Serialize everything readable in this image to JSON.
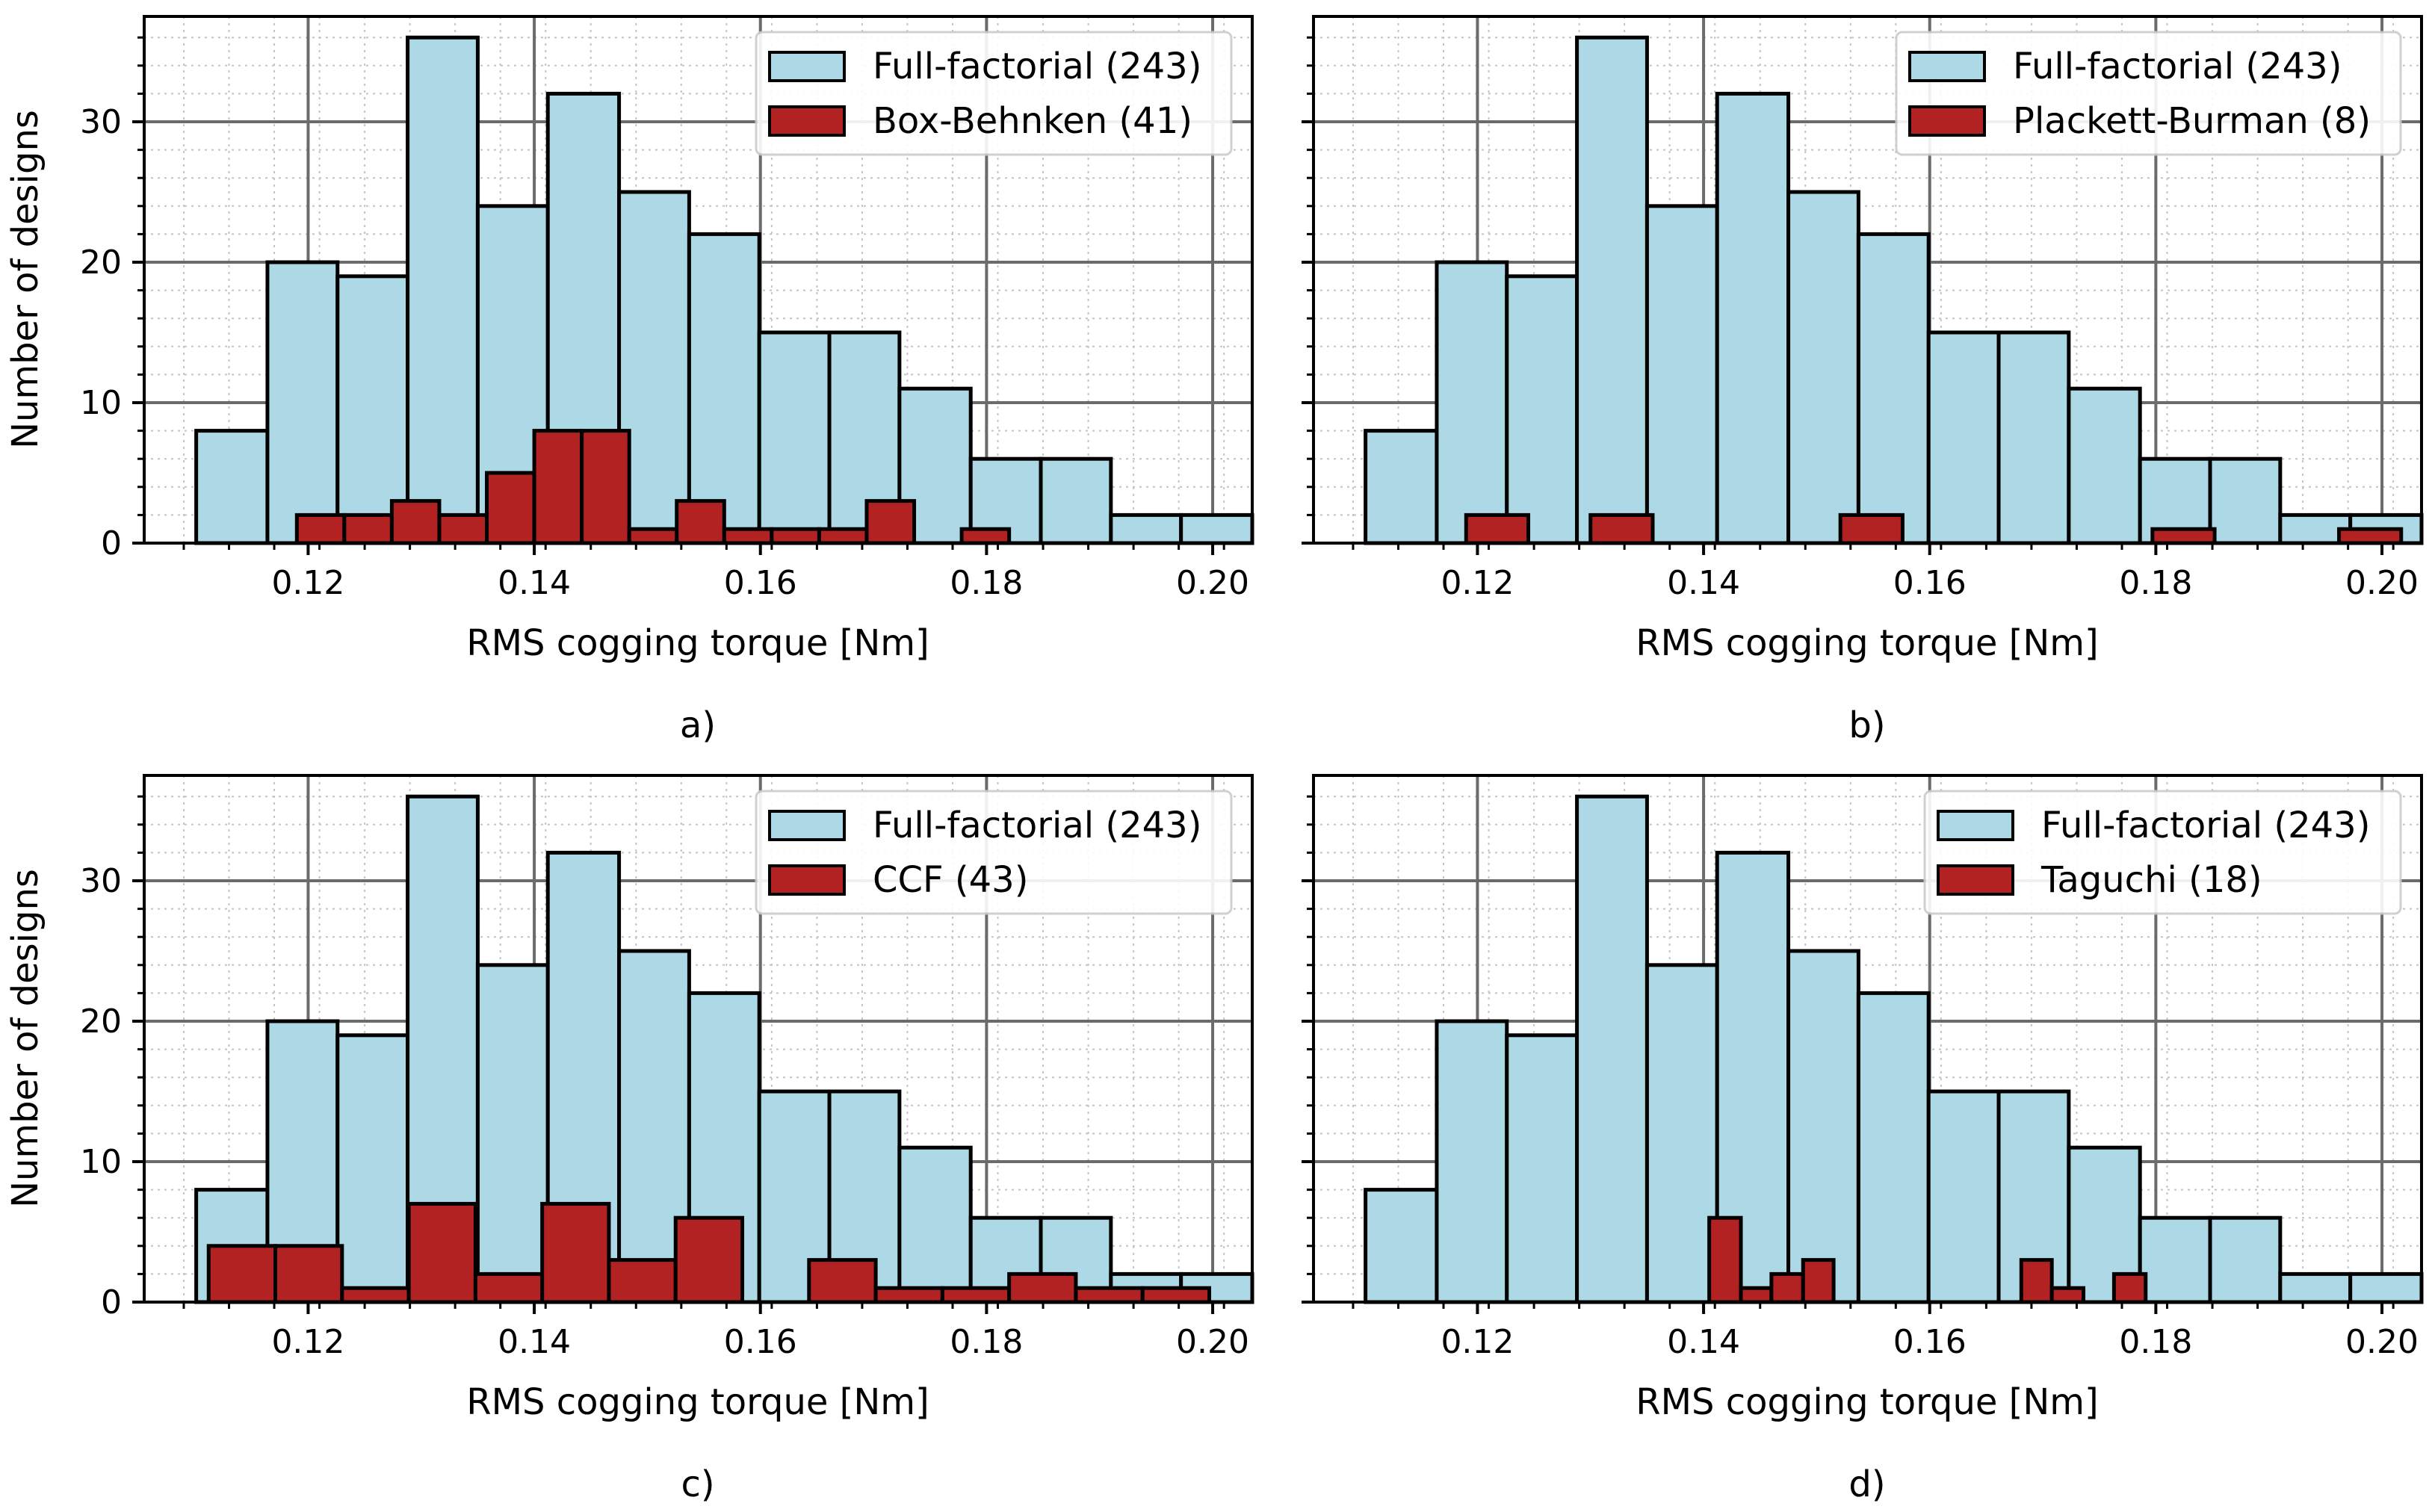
{
  "colors": {
    "full": "#add8e6",
    "subset": "#b22222",
    "edge": "#000000",
    "grid_major": "#6b6b6b",
    "grid_minor": "#c4c4c4",
    "legend_bg": "#ffffff",
    "legend_edge": "#cccccc"
  },
  "chart_data": [
    {
      "type": "bar",
      "panel_label": "a)",
      "xlabel": "RMS cogging torque [Nm]",
      "ylabel": "Number of designs",
      "xlim": [
        0.1055,
        0.2035
      ],
      "ylim": [
        0,
        37.5
      ],
      "xticks": [
        0.12,
        0.14,
        0.16,
        0.18,
        0.2
      ],
      "xtick_labels": [
        "0.12",
        "0.14",
        "0.16",
        "0.18",
        "0.20"
      ],
      "yticks": [
        0,
        10,
        20,
        30
      ],
      "ytick_labels": [
        "0",
        "10",
        "20",
        "30"
      ],
      "grid": true,
      "legend_position": "top-right",
      "series": [
        {
          "name": "Full-factorial (243)",
          "color_key": "full",
          "bins": [
            [
              0.1101,
              0.1164,
              8
            ],
            [
              0.1164,
              0.1226,
              20
            ],
            [
              0.1226,
              0.1288,
              19
            ],
            [
              0.1288,
              0.135,
              36
            ],
            [
              0.135,
              0.1412,
              24
            ],
            [
              0.1412,
              0.1475,
              32
            ],
            [
              0.1475,
              0.1537,
              25
            ],
            [
              0.1537,
              0.1599,
              22
            ],
            [
              0.1599,
              0.1661,
              15
            ],
            [
              0.1661,
              0.1723,
              15
            ],
            [
              0.1723,
              0.1786,
              11
            ],
            [
              0.1786,
              0.1848,
              6
            ],
            [
              0.1848,
              0.191,
              6
            ],
            [
              0.191,
              0.1972,
              2
            ],
            [
              0.1972,
              0.2035,
              2
            ]
          ]
        },
        {
          "name": "Box-Behnken (41)",
          "color_key": "subset",
          "bins": [
            [
              0.119,
              0.1232,
              2
            ],
            [
              0.1232,
              0.1274,
              2
            ],
            [
              0.1274,
              0.1316,
              3
            ],
            [
              0.1316,
              0.1358,
              2
            ],
            [
              0.1358,
              0.14,
              5
            ],
            [
              0.14,
              0.1442,
              8
            ],
            [
              0.1442,
              0.1484,
              8
            ],
            [
              0.1484,
              0.1526,
              1
            ],
            [
              0.1526,
              0.1568,
              3
            ],
            [
              0.1568,
              0.161,
              1
            ],
            [
              0.161,
              0.1652,
              1
            ],
            [
              0.1652,
              0.1694,
              1
            ],
            [
              0.1694,
              0.1736,
              3
            ],
            [
              0.1778,
              0.182,
              1
            ]
          ]
        }
      ]
    },
    {
      "type": "bar",
      "panel_label": "b)",
      "xlabel": "RMS cogging torque [Nm]",
      "ylabel": "",
      "xlim": [
        0.1055,
        0.2035
      ],
      "ylim": [
        0,
        37.5
      ],
      "xticks": [
        0.12,
        0.14,
        0.16,
        0.18,
        0.2
      ],
      "xtick_labels": [
        "0.12",
        "0.14",
        "0.16",
        "0.18",
        "0.20"
      ],
      "yticks": [
        0,
        10,
        20,
        30
      ],
      "ytick_labels": [],
      "grid": true,
      "legend_position": "top-right",
      "series": [
        {
          "name": "Full-factorial (243)",
          "color_key": "full",
          "bins": [
            [
              0.1101,
              0.1164,
              8
            ],
            [
              0.1164,
              0.1226,
              20
            ],
            [
              0.1226,
              0.1288,
              19
            ],
            [
              0.1288,
              0.135,
              36
            ],
            [
              0.135,
              0.1412,
              24
            ],
            [
              0.1412,
              0.1475,
              32
            ],
            [
              0.1475,
              0.1537,
              25
            ],
            [
              0.1537,
              0.1599,
              22
            ],
            [
              0.1599,
              0.1661,
              15
            ],
            [
              0.1661,
              0.1723,
              15
            ],
            [
              0.1723,
              0.1786,
              11
            ],
            [
              0.1786,
              0.1848,
              6
            ],
            [
              0.1848,
              0.191,
              6
            ],
            [
              0.191,
              0.1972,
              2
            ],
            [
              0.1972,
              0.2035,
              2
            ]
          ]
        },
        {
          "name": "Plackett-Burman (8)",
          "color_key": "subset",
          "bins": [
            [
              0.119,
              0.1245,
              2
            ],
            [
              0.13,
              0.1355,
              2
            ],
            [
              0.1521,
              0.1576,
              2
            ],
            [
              0.1797,
              0.1852,
              1
            ],
            [
              0.1962,
              0.2017,
              1
            ]
          ]
        }
      ]
    },
    {
      "type": "bar",
      "panel_label": "c)",
      "xlabel": "RMS cogging torque [Nm]",
      "ylabel": "Number of designs",
      "xlim": [
        0.1055,
        0.2035
      ],
      "ylim": [
        0,
        37.5
      ],
      "xticks": [
        0.12,
        0.14,
        0.16,
        0.18,
        0.2
      ],
      "xtick_labels": [
        "0.12",
        "0.14",
        "0.16",
        "0.18",
        "0.20"
      ],
      "yticks": [
        0,
        10,
        20,
        30
      ],
      "ytick_labels": [
        "0",
        "10",
        "20",
        "30"
      ],
      "grid": true,
      "legend_position": "top-right",
      "series": [
        {
          "name": "Full-factorial (243)",
          "color_key": "full",
          "bins": [
            [
              0.1101,
              0.1164,
              8
            ],
            [
              0.1164,
              0.1226,
              20
            ],
            [
              0.1226,
              0.1288,
              19
            ],
            [
              0.1288,
              0.135,
              36
            ],
            [
              0.135,
              0.1412,
              24
            ],
            [
              0.1412,
              0.1475,
              32
            ],
            [
              0.1475,
              0.1537,
              25
            ],
            [
              0.1537,
              0.1599,
              22
            ],
            [
              0.1599,
              0.1661,
              15
            ],
            [
              0.1661,
              0.1723,
              15
            ],
            [
              0.1723,
              0.1786,
              11
            ],
            [
              0.1786,
              0.1848,
              6
            ],
            [
              0.1848,
              0.191,
              6
            ],
            [
              0.191,
              0.1972,
              2
            ],
            [
              0.1972,
              0.2035,
              2
            ]
          ]
        },
        {
          "name": "CCF (43)",
          "color_key": "subset",
          "bins": [
            [
              0.1112,
              0.1171,
              4
            ],
            [
              0.1171,
              0.123,
              4
            ],
            [
              0.123,
              0.1289,
              1
            ],
            [
              0.1289,
              0.1348,
              7
            ],
            [
              0.1348,
              0.1407,
              2
            ],
            [
              0.1407,
              0.1466,
              7
            ],
            [
              0.1466,
              0.1525,
              3
            ],
            [
              0.1525,
              0.1584,
              6
            ],
            [
              0.1643,
              0.1702,
              3
            ],
            [
              0.1702,
              0.1761,
              1
            ],
            [
              0.1761,
              0.182,
              1
            ],
            [
              0.182,
              0.1879,
              2
            ],
            [
              0.1879,
              0.1938,
              1
            ],
            [
              0.1938,
              0.1997,
              1
            ]
          ]
        }
      ]
    },
    {
      "type": "bar",
      "panel_label": "d)",
      "xlabel": "RMS cogging torque [Nm]",
      "ylabel": "",
      "xlim": [
        0.1055,
        0.2035
      ],
      "ylim": [
        0,
        37.5
      ],
      "xticks": [
        0.12,
        0.14,
        0.16,
        0.18,
        0.2
      ],
      "xtick_labels": [
        "0.12",
        "0.14",
        "0.16",
        "0.18",
        "0.20"
      ],
      "yticks": [
        0,
        10,
        20,
        30
      ],
      "ytick_labels": [],
      "grid": true,
      "legend_position": "top-right",
      "series": [
        {
          "name": "Full-factorial (243)",
          "color_key": "full",
          "bins": [
            [
              0.1101,
              0.1164,
              8
            ],
            [
              0.1164,
              0.1226,
              20
            ],
            [
              0.1226,
              0.1288,
              19
            ],
            [
              0.1288,
              0.135,
              36
            ],
            [
              0.135,
              0.1412,
              24
            ],
            [
              0.1412,
              0.1475,
              32
            ],
            [
              0.1475,
              0.1537,
              25
            ],
            [
              0.1537,
              0.1599,
              22
            ],
            [
              0.1599,
              0.1661,
              15
            ],
            [
              0.1661,
              0.1723,
              15
            ],
            [
              0.1723,
              0.1786,
              11
            ],
            [
              0.1786,
              0.1848,
              6
            ],
            [
              0.1848,
              0.191,
              6
            ],
            [
              0.191,
              0.1972,
              2
            ],
            [
              0.1972,
              0.2035,
              2
            ]
          ]
        },
        {
          "name": "Taguchi (18)",
          "color_key": "subset",
          "bins": [
            [
              0.1405,
              0.1433,
              6
            ],
            [
              0.1433,
              0.146,
              1
            ],
            [
              0.146,
              0.1488,
              2
            ],
            [
              0.1488,
              0.1515,
              3
            ],
            [
              0.1681,
              0.1708,
              3
            ],
            [
              0.1708,
              0.1736,
              1
            ],
            [
              0.1763,
              0.1791,
              2
            ]
          ]
        }
      ]
    }
  ]
}
